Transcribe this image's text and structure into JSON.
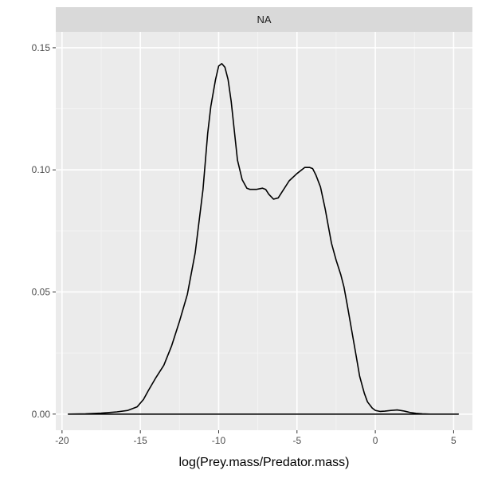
{
  "chart_data": {
    "type": "area",
    "panel_label": "NA",
    "title": "",
    "xlabel": "log(Prey.mass/Predator.mass)",
    "ylabel": "",
    "xlim": [
      -20.4,
      6.2
    ],
    "ylim": [
      -0.0066,
      0.1565
    ],
    "x_ticks": [
      -20,
      -15,
      -10,
      -5,
      0,
      5
    ],
    "x_tick_labels": [
      "-20",
      "-15",
      "-10",
      "-5",
      "0",
      "5"
    ],
    "y_ticks": [
      0.0,
      0.05,
      0.1,
      0.15
    ],
    "y_tick_labels": [
      "0.00",
      "0.05",
      "0.10",
      "0.15"
    ],
    "grid": true,
    "series": [
      {
        "color": "#000000",
        "x": [
          -19.6,
          -18.5,
          -17.5,
          -16.5,
          -15.8,
          -15.2,
          -14.8,
          -14.5,
          -14.0,
          -13.5,
          -13.0,
          -12.5,
          -12.0,
          -11.5,
          -11.0,
          -10.7,
          -10.5,
          -10.2,
          -10.0,
          -9.8,
          -9.6,
          -9.4,
          -9.2,
          -9.0,
          -8.8,
          -8.5,
          -8.2,
          -8.0,
          -7.6,
          -7.2,
          -7.0,
          -6.8,
          -6.5,
          -6.2,
          -6.0,
          -5.5,
          -5.0,
          -4.5,
          -4.2,
          -4.0,
          -3.8,
          -3.5,
          -3.2,
          -3.0,
          -2.8,
          -2.5,
          -2.2,
          -2.0,
          -1.8,
          -1.5,
          -1.2,
          -1.0,
          -0.7,
          -0.5,
          -0.2,
          0.0,
          0.3,
          0.6,
          1.0,
          1.4,
          1.8,
          2.2,
          2.6,
          3.0,
          3.5,
          4.0,
          4.5,
          5.3
        ],
        "y": [
          0.0,
          0.0001,
          0.0004,
          0.0009,
          0.0015,
          0.003,
          0.006,
          0.0095,
          0.015,
          0.02,
          0.028,
          0.038,
          0.049,
          0.066,
          0.092,
          0.115,
          0.126,
          0.137,
          0.1425,
          0.1435,
          0.142,
          0.137,
          0.128,
          0.116,
          0.104,
          0.096,
          0.0925,
          0.092,
          0.092,
          0.0925,
          0.092,
          0.09,
          0.088,
          0.0885,
          0.0905,
          0.0955,
          0.0985,
          0.101,
          0.101,
          0.1005,
          0.098,
          0.093,
          0.084,
          0.077,
          0.07,
          0.063,
          0.057,
          0.052,
          0.045,
          0.034,
          0.023,
          0.0155,
          0.0085,
          0.005,
          0.0025,
          0.0015,
          0.0011,
          0.0012,
          0.0015,
          0.0017,
          0.0013,
          0.0007,
          0.0003,
          0.0001,
          0.0,
          0.0,
          0.0,
          0.0
        ]
      }
    ]
  }
}
